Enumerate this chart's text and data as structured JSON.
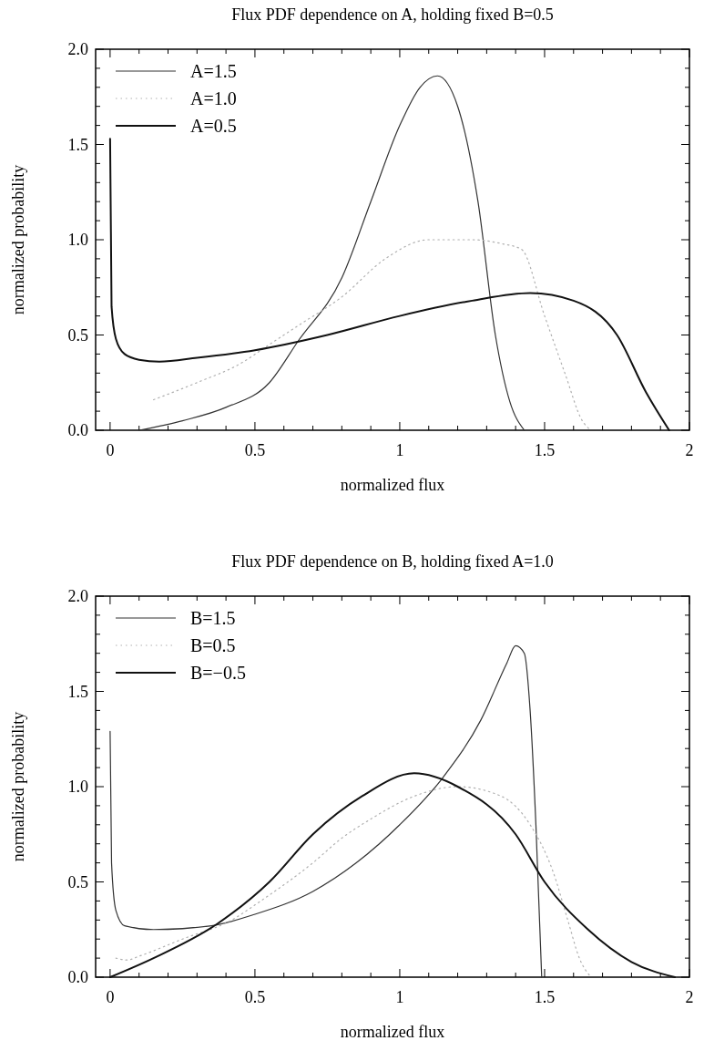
{
  "chart_data": [
    {
      "type": "line",
      "title": "Flux PDF dependence on A, holding fixed B=0.5",
      "xlabel": "normalized flux",
      "ylabel": "normalized probability",
      "xlim": [
        -0.05,
        2.0
      ],
      "xticks": [
        0,
        {
          "value": 0.1,
          "label": null
        },
        {
          "value": 0.2,
          "label": null
        },
        {
          "value": 0.3,
          "label": null
        },
        {
          "value": 0.4,
          "label": null
        },
        {
          "value": 0.5,
          "label": "0.5"
        },
        {
          "value": 0.6,
          "label": null
        },
        {
          "value": 0.7,
          "label": null
        },
        {
          "value": 0.8,
          "label": null
        },
        {
          "value": 0.9,
          "label": null
        },
        1,
        {
          "value": 1.1,
          "label": null
        },
        {
          "value": 1.2,
          "label": null
        },
        {
          "value": 1.3,
          "label": null
        },
        {
          "value": 1.4,
          "label": null
        },
        1.5,
        {
          "value": 1.6,
          "label": null
        },
        {
          "value": 1.7,
          "label": null
        },
        {
          "value": 1.8,
          "label": null
        },
        {
          "value": 1.9,
          "label": null
        },
        2
      ],
      "ylim": [
        0,
        2.0
      ],
      "yticks": [
        {
          "value": 0,
          "label": "0.0"
        },
        {
          "value": 0.1,
          "label": null
        },
        {
          "value": 0.2,
          "label": null
        },
        {
          "value": 0.3,
          "label": null
        },
        {
          "value": 0.4,
          "label": null
        },
        {
          "value": 0.5,
          "label": "0.5"
        },
        {
          "value": 0.6,
          "label": null
        },
        {
          "value": 0.7,
          "label": null
        },
        {
          "value": 0.8,
          "label": null
        },
        {
          "value": 0.9,
          "label": null
        },
        {
          "value": 1,
          "label": "1.0"
        },
        {
          "value": 1.1,
          "label": null
        },
        {
          "value": 1.2,
          "label": null
        },
        {
          "value": 1.3,
          "label": null
        },
        {
          "value": 1.4,
          "label": null
        },
        {
          "value": 1.5,
          "label": "1.5"
        },
        {
          "value": 1.6,
          "label": null
        },
        {
          "value": 1.7,
          "label": null
        },
        {
          "value": 1.8,
          "label": null
        },
        {
          "value": 1.9,
          "label": null
        },
        {
          "value": 2,
          "label": "2.0"
        }
      ],
      "legend": "top left",
      "grid": false,
      "series": [
        {
          "name": "A=1.5",
          "color": "#333333",
          "line_style": "solid",
          "x": [
            0.1,
            0.25,
            0.4,
            0.55,
            0.65,
            0.8,
            0.9,
            1.0,
            1.07,
            1.13,
            1.2,
            1.27,
            1.33,
            1.38,
            1.43
          ],
          "values": [
            0,
            0.05,
            0.12,
            0.25,
            0.47,
            0.8,
            1.2,
            1.6,
            1.8,
            1.86,
            1.7,
            1.2,
            0.5,
            0.15,
            0
          ]
        },
        {
          "name": "A=1.0",
          "color": "#b0b0b0",
          "line_style": "dotted",
          "x": [
            0.15,
            0.3,
            0.45,
            0.55,
            0.65,
            0.8,
            0.95,
            1.1,
            1.25,
            1.35,
            1.42,
            1.5,
            1.57,
            1.63,
            1.66
          ],
          "values": [
            0.16,
            0.25,
            0.35,
            0.45,
            0.55,
            0.7,
            0.9,
            1.0,
            1.0,
            0.98,
            0.95,
            0.6,
            0.3,
            0.05,
            0
          ]
        },
        {
          "name": "A=0.5",
          "color": "#111111",
          "line_style": "solid",
          "x": [
            0,
            0.005,
            0.02,
            0.05,
            0.1,
            0.17,
            0.3,
            0.5,
            0.75,
            1.0,
            1.25,
            1.45,
            1.6,
            1.75,
            1.85,
            1.93
          ],
          "values": [
            1.53,
            0.65,
            0.48,
            0.4,
            0.37,
            0.36,
            0.38,
            0.42,
            0.5,
            0.6,
            0.68,
            0.72,
            0.68,
            0.5,
            0.2,
            0
          ]
        }
      ]
    },
    {
      "type": "line",
      "title": "Flux PDF dependence on B, holding fixed A=1.0",
      "xlabel": "normalized flux",
      "ylabel": "normalized probability",
      "xlim": [
        -0.05,
        2.0
      ],
      "xticks": [
        0,
        {
          "value": 0.1,
          "label": null
        },
        {
          "value": 0.2,
          "label": null
        },
        {
          "value": 0.3,
          "label": null
        },
        {
          "value": 0.4,
          "label": null
        },
        {
          "value": 0.5,
          "label": "0.5"
        },
        {
          "value": 0.6,
          "label": null
        },
        {
          "value": 0.7,
          "label": null
        },
        {
          "value": 0.8,
          "label": null
        },
        {
          "value": 0.9,
          "label": null
        },
        1,
        {
          "value": 1.1,
          "label": null
        },
        {
          "value": 1.2,
          "label": null
        },
        {
          "value": 1.3,
          "label": null
        },
        {
          "value": 1.4,
          "label": null
        },
        1.5,
        {
          "value": 1.6,
          "label": null
        },
        {
          "value": 1.7,
          "label": null
        },
        {
          "value": 1.8,
          "label": null
        },
        {
          "value": 1.9,
          "label": null
        },
        2
      ],
      "ylim": [
        0,
        2.0
      ],
      "yticks": [
        {
          "value": 0,
          "label": "0.0"
        },
        {
          "value": 0.1,
          "label": null
        },
        {
          "value": 0.2,
          "label": null
        },
        {
          "value": 0.3,
          "label": null
        },
        {
          "value": 0.4,
          "label": null
        },
        {
          "value": 0.5,
          "label": "0.5"
        },
        {
          "value": 0.6,
          "label": null
        },
        {
          "value": 0.7,
          "label": null
        },
        {
          "value": 0.8,
          "label": null
        },
        {
          "value": 0.9,
          "label": null
        },
        {
          "value": 1,
          "label": "1.0"
        },
        {
          "value": 1.1,
          "label": null
        },
        {
          "value": 1.2,
          "label": null
        },
        {
          "value": 1.3,
          "label": null
        },
        {
          "value": 1.4,
          "label": null
        },
        {
          "value": 1.5,
          "label": "1.5"
        },
        {
          "value": 1.6,
          "label": null
        },
        {
          "value": 1.7,
          "label": null
        },
        {
          "value": 1.8,
          "label": null
        },
        {
          "value": 1.9,
          "label": null
        },
        {
          "value": 2,
          "label": "2.0"
        }
      ],
      "legend": "top left",
      "grid": false,
      "series": [
        {
          "name": "B=1.5",
          "color": "#333333",
          "line_style": "solid",
          "x": [
            0,
            0.005,
            0.02,
            0.05,
            0.15,
            0.35,
            0.5,
            0.7,
            0.85,
            1.0,
            1.15,
            1.28,
            1.37,
            1.4,
            1.43,
            1.45,
            1.47,
            1.49
          ],
          "values": [
            1.29,
            0.6,
            0.35,
            0.27,
            0.25,
            0.27,
            0.33,
            0.45,
            0.6,
            0.8,
            1.05,
            1.35,
            1.65,
            1.74,
            1.7,
            1.4,
            0.8,
            0
          ]
        },
        {
          "name": "B=0.5",
          "color": "#b0b0b0",
          "line_style": "dotted",
          "x": [
            0.02,
            0.06,
            0.1,
            0.25,
            0.42,
            0.52,
            0.7,
            0.8,
            0.9,
            1.05,
            1.2,
            1.35,
            1.45,
            1.53,
            1.58,
            1.62,
            1.66
          ],
          "values": [
            0.1,
            0.09,
            0.11,
            0.2,
            0.3,
            0.4,
            0.6,
            0.73,
            0.83,
            0.95,
            1.0,
            0.95,
            0.8,
            0.55,
            0.3,
            0.1,
            0
          ]
        },
        {
          "name": "B=−0.5",
          "color": "#111111",
          "line_style": "solid",
          "x": [
            0,
            0.15,
            0.37,
            0.55,
            0.7,
            0.87,
            1.05,
            1.2,
            1.4,
            1.5,
            1.65,
            1.8,
            1.95
          ],
          "values": [
            0,
            0.1,
            0.28,
            0.5,
            0.75,
            0.95,
            1.07,
            1.0,
            0.75,
            0.5,
            0.25,
            0.08,
            0
          ]
        }
      ]
    }
  ]
}
